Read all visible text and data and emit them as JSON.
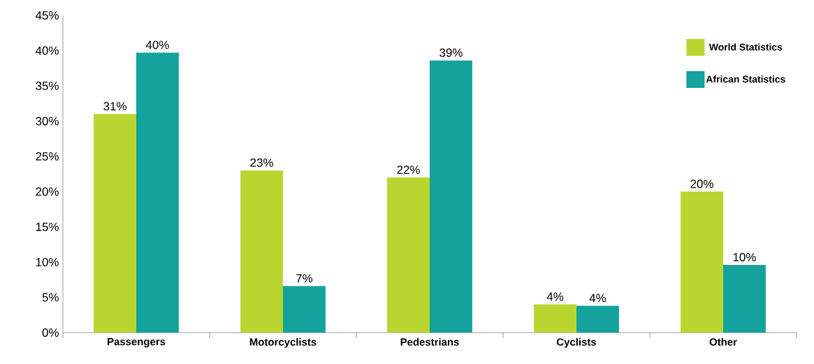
{
  "chart_data": {
    "type": "bar",
    "categories": [
      "Passengers",
      "Motorcyclists",
      "Pedestrians",
      "Cyclists",
      "Other"
    ],
    "series": [
      {
        "name": "World Statistics",
        "color": "#b9d630",
        "values": [
          31,
          23,
          22,
          4,
          20
        ],
        "value_labels": [
          "31%",
          "23%",
          "22%",
          "4%",
          "20%"
        ]
      },
      {
        "name": "African Statistics",
        "color": "#13a39c",
        "values": [
          39.7,
          6.6,
          38.6,
          3.8,
          9.6
        ],
        "value_labels": [
          "40%",
          "7%",
          "39%",
          "4%",
          "10%"
        ]
      }
    ],
    "ylim": [
      0,
      45
    ],
    "yticks": [
      {
        "value": 0,
        "label": "0%"
      },
      {
        "value": 5,
        "label": "5%"
      },
      {
        "value": 10,
        "label": "10%"
      },
      {
        "value": 15,
        "label": "15%"
      },
      {
        "value": 20,
        "label": "20%"
      },
      {
        "value": 25,
        "label": "25%"
      },
      {
        "value": 30,
        "label": "30%"
      },
      {
        "value": 35,
        "label": "35%"
      },
      {
        "value": 40,
        "label": "40%"
      },
      {
        "value": 45,
        "label": "45%"
      }
    ],
    "grid": false,
    "legend": "top right"
  }
}
